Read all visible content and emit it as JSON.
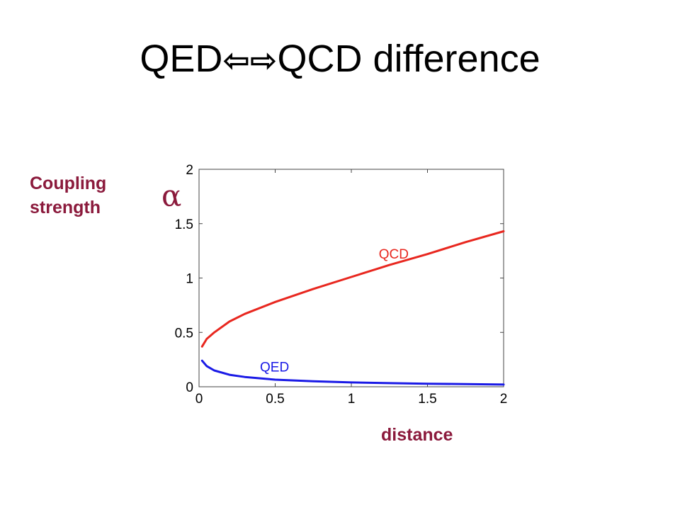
{
  "slide": {
    "title_left": "QED",
    "title_arrows": "⇦⇨",
    "title_right": "QCD difference"
  },
  "labels": {
    "coupling": "Coupling strength",
    "alpha": "α",
    "distance": "distance"
  },
  "chart_data": {
    "type": "line",
    "title": "",
    "xlabel": "distance",
    "ylabel": "Coupling strength",
    "xlim": [
      0,
      2
    ],
    "ylim": [
      0,
      2
    ],
    "xticks": [
      0,
      0.5,
      1,
      1.5,
      2
    ],
    "xtick_labels": [
      "0",
      "0.5",
      "1",
      "1.5",
      "2"
    ],
    "yticks": [
      0,
      0.5,
      1,
      1.5,
      2
    ],
    "ytick_labels": [
      "0",
      "0.5",
      "1",
      "1.5",
      "2"
    ],
    "grid": false,
    "series": [
      {
        "name": "QCD",
        "color": "#e8271f",
        "x": [
          0.02,
          0.05,
          0.1,
          0.2,
          0.3,
          0.5,
          0.75,
          1.0,
          1.25,
          1.5,
          1.75,
          2.0
        ],
        "y": [
          0.37,
          0.44,
          0.5,
          0.6,
          0.67,
          0.78,
          0.9,
          1.01,
          1.12,
          1.22,
          1.33,
          1.43
        ]
      },
      {
        "name": "QED",
        "color": "#1a1ae6",
        "x": [
          0.02,
          0.05,
          0.1,
          0.2,
          0.3,
          0.5,
          0.75,
          1.0,
          1.25,
          1.5,
          1.75,
          2.0
        ],
        "y": [
          0.24,
          0.19,
          0.15,
          0.11,
          0.09,
          0.065,
          0.05,
          0.04,
          0.033,
          0.028,
          0.024,
          0.02
        ]
      }
    ],
    "annotations": [
      {
        "text": "QCD",
        "x": 1.18,
        "y": 1.18,
        "color": "#e8271f"
      },
      {
        "text": "QED",
        "x": 0.4,
        "y": 0.14,
        "color": "#1a1ae6"
      }
    ]
  }
}
